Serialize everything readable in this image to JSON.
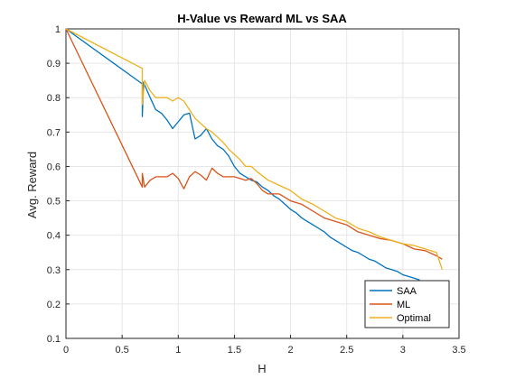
{
  "chart_data": {
    "type": "line",
    "title": "H-Value vs Reward ML vs SAA",
    "xlabel": "H",
    "ylabel": "Avg. Reward",
    "xlim": [
      0,
      3.5
    ],
    "ylim": [
      0.1,
      1
    ],
    "xticks": [
      0,
      0.5,
      1,
      1.5,
      2,
      2.5,
      3,
      3.5
    ],
    "xtick_labels": [
      "0",
      "0.5",
      "1",
      "1.5",
      "2",
      "2.5",
      "3",
      "3.5"
    ],
    "yticks": [
      0.1,
      0.2,
      0.3,
      0.4,
      0.5,
      0.6,
      0.7,
      0.8,
      0.9,
      1
    ],
    "ytick_labels": [
      "0.1",
      "0.2",
      "0.3",
      "0.4",
      "0.5",
      "0.6",
      "0.7",
      "0.8",
      "0.9",
      "1"
    ],
    "grid": true,
    "legend_position": "bottom-right",
    "series": [
      {
        "name": "SAA",
        "color": "#0072BD",
        "points": [
          [
            0,
            1
          ],
          [
            0.68,
            0.84
          ],
          [
            0.68,
            0.745
          ],
          [
            0.69,
            0.845
          ],
          [
            0.75,
            0.8
          ],
          [
            0.8,
            0.765
          ],
          [
            0.85,
            0.755
          ],
          [
            0.9,
            0.735
          ],
          [
            0.95,
            0.71
          ],
          [
            1.0,
            0.73
          ],
          [
            1.05,
            0.75
          ],
          [
            1.1,
            0.755
          ],
          [
            1.15,
            0.68
          ],
          [
            1.2,
            0.69
          ],
          [
            1.25,
            0.71
          ],
          [
            1.3,
            0.68
          ],
          [
            1.35,
            0.66
          ],
          [
            1.4,
            0.65
          ],
          [
            1.45,
            0.63
          ],
          [
            1.5,
            0.6
          ],
          [
            1.55,
            0.58
          ],
          [
            1.6,
            0.57
          ],
          [
            1.65,
            0.56
          ],
          [
            1.7,
            0.555
          ],
          [
            1.75,
            0.54
          ],
          [
            1.8,
            0.53
          ],
          [
            1.85,
            0.515
          ],
          [
            1.9,
            0.505
          ],
          [
            1.95,
            0.49
          ],
          [
            2.0,
            0.475
          ],
          [
            2.05,
            0.465
          ],
          [
            2.1,
            0.45
          ],
          [
            2.15,
            0.44
          ],
          [
            2.2,
            0.43
          ],
          [
            2.25,
            0.42
          ],
          [
            2.3,
            0.41
          ],
          [
            2.35,
            0.395
          ],
          [
            2.4,
            0.385
          ],
          [
            2.45,
            0.375
          ],
          [
            2.5,
            0.365
          ],
          [
            2.55,
            0.355
          ],
          [
            2.6,
            0.35
          ],
          [
            2.65,
            0.34
          ],
          [
            2.7,
            0.33
          ],
          [
            2.75,
            0.325
          ],
          [
            2.8,
            0.315
          ],
          [
            2.85,
            0.305
          ],
          [
            2.9,
            0.3
          ],
          [
            2.95,
            0.295
          ],
          [
            3.0,
            0.285
          ],
          [
            3.05,
            0.28
          ],
          [
            3.1,
            0.275
          ],
          [
            3.15,
            0.27
          ]
        ]
      },
      {
        "name": "ML",
        "color": "#D95319",
        "points": [
          [
            0,
            1
          ],
          [
            0.68,
            0.54
          ],
          [
            0.68,
            0.58
          ],
          [
            0.7,
            0.54
          ],
          [
            0.75,
            0.56
          ],
          [
            0.8,
            0.57
          ],
          [
            0.9,
            0.57
          ],
          [
            0.95,
            0.58
          ],
          [
            1.0,
            0.565
          ],
          [
            1.05,
            0.535
          ],
          [
            1.1,
            0.57
          ],
          [
            1.15,
            0.585
          ],
          [
            1.2,
            0.575
          ],
          [
            1.25,
            0.56
          ],
          [
            1.3,
            0.595
          ],
          [
            1.35,
            0.58
          ],
          [
            1.4,
            0.57
          ],
          [
            1.5,
            0.57
          ],
          [
            1.6,
            0.56
          ],
          [
            1.65,
            0.565
          ],
          [
            1.7,
            0.55
          ],
          [
            1.75,
            0.53
          ],
          [
            1.8,
            0.52
          ],
          [
            1.9,
            0.52
          ],
          [
            2.0,
            0.5
          ],
          [
            2.1,
            0.49
          ],
          [
            2.2,
            0.47
          ],
          [
            2.3,
            0.45
          ],
          [
            2.4,
            0.44
          ],
          [
            2.5,
            0.43
          ],
          [
            2.6,
            0.41
          ],
          [
            2.7,
            0.4
          ],
          [
            2.8,
            0.39
          ],
          [
            2.9,
            0.385
          ],
          [
            3.0,
            0.375
          ],
          [
            3.1,
            0.36
          ],
          [
            3.2,
            0.355
          ],
          [
            3.3,
            0.34
          ],
          [
            3.35,
            0.33
          ]
        ]
      },
      {
        "name": "Optimal",
        "color": "#EDB120",
        "points": [
          [
            0,
            1
          ],
          [
            0.68,
            0.885
          ],
          [
            0.68,
            0.78
          ],
          [
            0.7,
            0.85
          ],
          [
            0.75,
            0.82
          ],
          [
            0.8,
            0.8
          ],
          [
            0.9,
            0.8
          ],
          [
            0.95,
            0.79
          ],
          [
            1.0,
            0.8
          ],
          [
            1.05,
            0.79
          ],
          [
            1.1,
            0.765
          ],
          [
            1.15,
            0.74
          ],
          [
            1.2,
            0.725
          ],
          [
            1.25,
            0.71
          ],
          [
            1.3,
            0.7
          ],
          [
            1.35,
            0.685
          ],
          [
            1.4,
            0.67
          ],
          [
            1.45,
            0.65
          ],
          [
            1.5,
            0.635
          ],
          [
            1.55,
            0.62
          ],
          [
            1.6,
            0.6
          ],
          [
            1.65,
            0.6
          ],
          [
            1.7,
            0.585
          ],
          [
            1.8,
            0.56
          ],
          [
            1.9,
            0.545
          ],
          [
            2.0,
            0.53
          ],
          [
            2.1,
            0.505
          ],
          [
            2.2,
            0.49
          ],
          [
            2.3,
            0.47
          ],
          [
            2.4,
            0.45
          ],
          [
            2.5,
            0.44
          ],
          [
            2.6,
            0.42
          ],
          [
            2.7,
            0.41
          ],
          [
            2.8,
            0.395
          ],
          [
            2.9,
            0.385
          ],
          [
            3.0,
            0.375
          ],
          [
            3.1,
            0.37
          ],
          [
            3.2,
            0.36
          ],
          [
            3.3,
            0.35
          ],
          [
            3.35,
            0.3
          ]
        ]
      }
    ]
  }
}
